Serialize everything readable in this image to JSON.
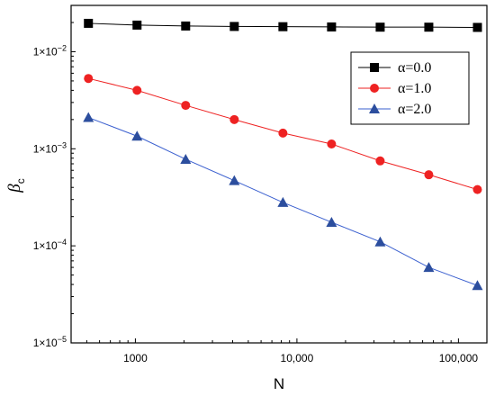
{
  "chart_data": {
    "type": "line",
    "title": "",
    "xlabel": "N",
    "ylabel": "β_c",
    "ylabel_main": "β",
    "ylabel_sub": "c",
    "xscale": "log",
    "yscale": "log",
    "xlim": [
      400,
      150000
    ],
    "ylim": [
      1e-05,
      0.03
    ],
    "grid": false,
    "legend_position": "top-right",
    "x": [
      512,
      1024,
      2048,
      4096,
      8192,
      16384,
      32768,
      65536,
      131072
    ],
    "x_ticks": [
      {
        "value": 1000,
        "label": "1000"
      },
      {
        "value": 10000,
        "label": "10,000"
      },
      {
        "value": 100000,
        "label": "100,000"
      }
    ],
    "y_ticks": [
      {
        "value": 1e-05,
        "mantissa": "1×10",
        "exponent": "−5"
      },
      {
        "value": 0.0001,
        "mantissa": "1×10",
        "exponent": "−4"
      },
      {
        "value": 0.001,
        "mantissa": "1×10",
        "exponent": "−3"
      },
      {
        "value": 0.01,
        "mantissa": "1×10",
        "exponent": "−2"
      }
    ],
    "series": [
      {
        "name": "α=0.0",
        "marker": "square",
        "color": "#000000",
        "line_color": "#000000",
        "values": [
          0.0196,
          0.0188,
          0.0184,
          0.0182,
          0.0181,
          0.018,
          0.0179,
          0.0179,
          0.0178
        ]
      },
      {
        "name": "α=1.0",
        "marker": "circle",
        "color": "#ee2222",
        "line_color": "#ee2222",
        "values": [
          0.0053,
          0.004,
          0.0028,
          0.002,
          0.00145,
          0.00112,
          0.00075,
          0.00054,
          0.00038
        ]
      },
      {
        "name": "α=2.0",
        "marker": "triangle",
        "color": "#2c4e9e",
        "line_color": "#3a5fcf",
        "values": [
          0.0021,
          0.00135,
          0.00078,
          0.00047,
          0.00028,
          0.000175,
          0.00011,
          6e-05,
          3.9e-05
        ]
      }
    ]
  }
}
